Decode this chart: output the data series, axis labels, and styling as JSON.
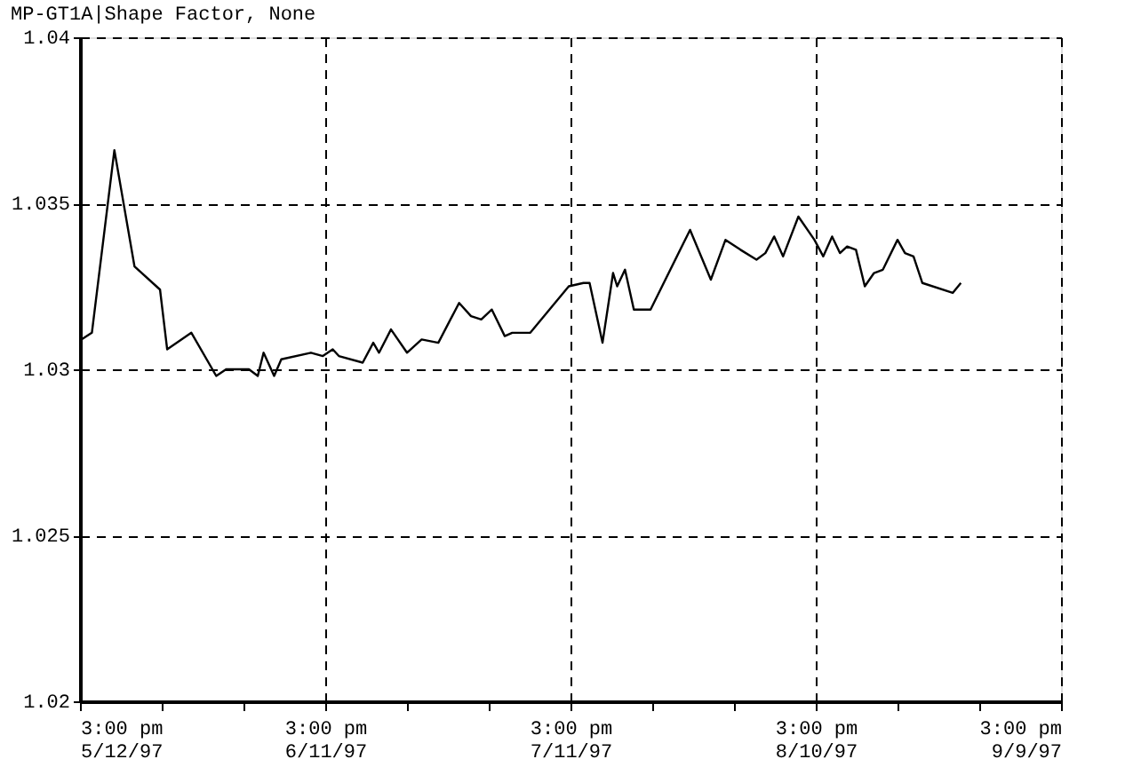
{
  "chart_data": {
    "type": "line",
    "title": "MP-GT1A|Shape Factor, None",
    "x": [
      "1997-05-12T20:00",
      "1997-05-14T02:00",
      "1997-05-16T20:00",
      "1997-05-19T07:00",
      "1997-05-22T10:00",
      "1997-05-23T07:00",
      "1997-05-26T06:00",
      "1997-05-29T07:00",
      "1997-05-30T12:00",
      "1997-06-02T07:00",
      "1997-06-03T09:00",
      "1997-06-04T02:00",
      "1997-06-05T09:00",
      "1997-06-06T06:00",
      "1997-06-09T21:00",
      "1997-06-11T08:00",
      "1997-06-12T13:00",
      "1997-06-13T07:00",
      "1997-06-16T05:00",
      "1997-06-17T12:00",
      "1997-06-18T05:00",
      "1997-06-19T16:00",
      "1997-06-21T15:00",
      "1997-06-23T10:00",
      "1997-06-25T11:00",
      "1997-06-28T00:00",
      "1997-06-29T11:00",
      "1997-06-30T17:00",
      "1997-07-02T00:00",
      "1997-07-03T14:00",
      "1997-07-04T12:00",
      "1997-07-06T17:00",
      "1997-07-11T10:00",
      "1997-07-13T05:00",
      "1997-07-13T23:00",
      "1997-07-15T13:00",
      "1997-07-16T20:00",
      "1997-07-17T08:00",
      "1997-07-18T07:00",
      "1997-07-19T09:00",
      "1997-07-21T10:00",
      "1997-07-26T06:00",
      "1997-07-28T19:00",
      "1997-07-30T14:00",
      "1997-08-01T10:00",
      "1997-08-03T09:00",
      "1997-08-04T11:00",
      "1997-08-05T13:00",
      "1997-08-06T15:00",
      "1997-08-08T12:00",
      "1997-08-10T11:00",
      "1997-08-11T13:00",
      "1997-08-12T15:00",
      "1997-08-13T14:00",
      "1997-08-14T11:00",
      "1997-08-15T13:00",
      "1997-08-16T15:00",
      "1997-08-17T18:00",
      "1997-08-18T20:00",
      "1997-08-20T15:00",
      "1997-08-21T13:00",
      "1997-08-22T14:00",
      "1997-08-23T16:00",
      "1997-08-27T09:00",
      "1997-08-28T09:00"
    ],
    "series": [
      {
        "color": "#000000",
        "values": [
          1.0309,
          1.0311,
          1.0366,
          1.0331,
          1.0324,
          1.0306,
          1.0311,
          1.0298,
          1.03,
          1.03,
          1.0298,
          1.0305,
          1.0298,
          1.0303,
          1.0305,
          1.0304,
          1.0306,
          1.0304,
          1.0302,
          1.0308,
          1.0305,
          1.0312,
          1.0305,
          1.0309,
          1.0308,
          1.032,
          1.0316,
          1.0315,
          1.0318,
          1.031,
          1.0311,
          1.0311,
          1.0325,
          1.0326,
          1.0326,
          1.0308,
          1.0329,
          1.0325,
          1.033,
          1.0318,
          1.0318,
          1.0342,
          1.0327,
          1.0339,
          1.0336,
          1.0333,
          1.0335,
          1.034,
          1.0334,
          1.0346,
          1.0339,
          1.0334,
          1.034,
          1.0335,
          1.0337,
          1.0336,
          1.0325,
          1.0329,
          1.033,
          1.0339,
          1.0335,
          1.0334,
          1.0326,
          1.0323,
          1.0326
        ]
      }
    ],
    "xlim": [
      "1997-05-12T15:00",
      "1997-09-09T15:00"
    ],
    "xticks": [
      {
        "value": "1997-05-12T15:00",
        "label": "3:00 pm\n5/12/97"
      },
      {
        "value": "1997-05-22T15:00",
        "label": null
      },
      {
        "value": "1997-06-01T15:00",
        "label": null
      },
      {
        "value": "1997-06-11T15:00",
        "label": "3:00 pm\n6/11/97"
      },
      {
        "value": "1997-06-21T15:00",
        "label": null
      },
      {
        "value": "1997-07-01T15:00",
        "label": null
      },
      {
        "value": "1997-07-11T15:00",
        "label": "3:00 pm\n7/11/97"
      },
      {
        "value": "1997-07-21T15:00",
        "label": null
      },
      {
        "value": "1997-07-31T15:00",
        "label": null
      },
      {
        "value": "1997-08-10T15:00",
        "label": "3:00 pm\n8/10/97"
      },
      {
        "value": "1997-08-20T15:00",
        "label": null
      },
      {
        "value": "1997-08-30T15:00",
        "label": null
      },
      {
        "value": "1997-09-09T15:00",
        "label": "3:00 pm\n9/9/97"
      }
    ],
    "ylim": [
      1.02,
      1.04
    ],
    "yticks": [
      1.02,
      1.025,
      1.03,
      1.035,
      1.04
    ],
    "grid": true,
    "marker": "none",
    "line_style": "solid"
  }
}
